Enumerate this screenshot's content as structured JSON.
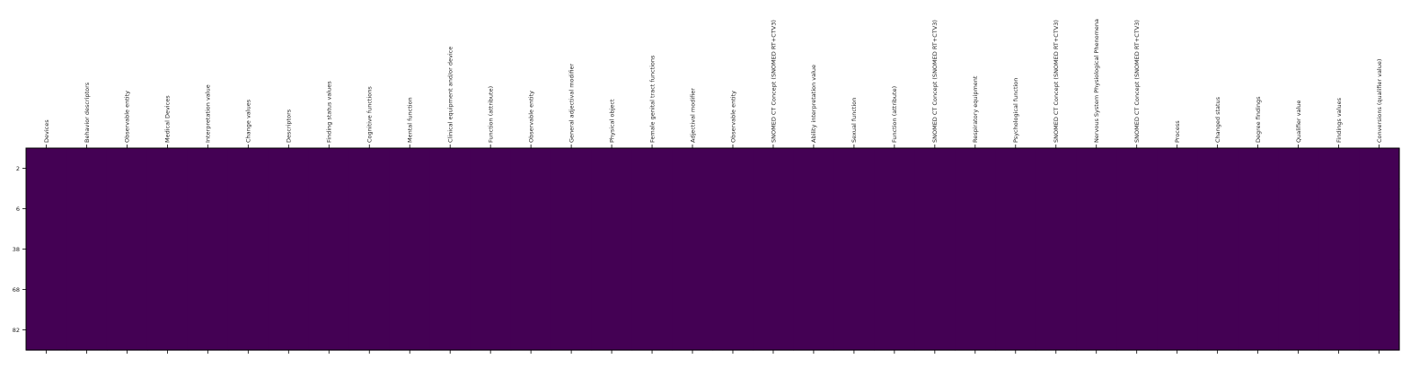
{
  "chart_data": {
    "type": "heatmap",
    "title": "",
    "xlabel": "",
    "ylabel": "",
    "x_position": "top",
    "columns": [
      "Devices",
      "Behavior descriptors",
      "Observable entity",
      "Medical Devices",
      "Interpretation value",
      "Change values",
      "Descriptors",
      "Finding status values",
      "Cognitive functions",
      "Mental function",
      "Clinical equipment and/or device",
      "Function (attribute)",
      "Observable entity",
      "General adjectival modifier",
      "Physical object",
      "Female genital tract functions",
      "Adjectival modifier",
      "Observable entity",
      "SNOMED CT Concept (SNOMED RT+CTV3)",
      "Ability interpretation value",
      "Sexual function",
      "Function (attribute)",
      "SNOMED CT Concept (SNOMED RT+CTV3)",
      "Respiratory equipment",
      "Psychological function",
      "SNOMED CT Concept (SNOMED RT+CTV3)",
      "Nervous System Physiological Phenomena",
      "SNOMED CT Concept (SNOMED RT+CTV3)",
      "Process",
      "Changed status",
      "Degree findings",
      "Qualifier value",
      "Findings values",
      "Conversions (qualifier value)"
    ],
    "rows": [
      "2",
      "6",
      "38",
      "68",
      "82"
    ],
    "values_uniform": 0,
    "cell_color": "#440154",
    "colormap": "viridis",
    "grid": false
  }
}
